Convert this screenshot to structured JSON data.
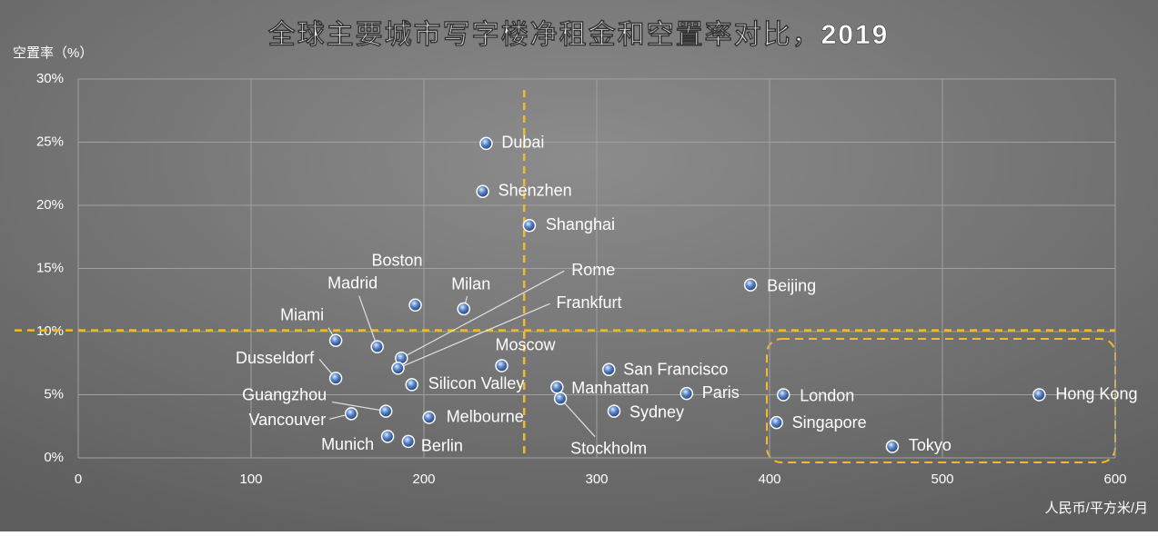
{
  "chart_data": {
    "type": "scatter",
    "title": "全球主要城市写字楼净租金和空置率对比，2019",
    "y_label": "空置率（%）",
    "x_label": "人民币/平方米/月",
    "labels": [
      "Dubai",
      "Shenzhen",
      "Shanghai",
      "Beijing",
      "Boston",
      "Milan",
      "Miami",
      "Madrid",
      "Rome",
      "Frankfurt",
      "Moscow",
      "San Francisco",
      "Dusseldorf",
      "Silicon Valley",
      "Manhattan",
      "Stockholm",
      "Paris",
      "London",
      "Hong Kong",
      "Guangzhou",
      "Sydney",
      "Vancouver",
      "Melbourne",
      "Singapore",
      "Munich",
      "Berlin",
      "Tokyo"
    ],
    "x": [
      236,
      234,
      261,
      389,
      195,
      223,
      149,
      173,
      187,
      185,
      245,
      307,
      149,
      193,
      277,
      279,
      352,
      408,
      556,
      178,
      310,
      158,
      203,
      404,
      179,
      191,
      471
    ],
    "values": [
      24.9,
      21.1,
      18.4,
      13.7,
      12.1,
      11.8,
      9.3,
      8.8,
      7.9,
      7.1,
      7.3,
      7.0,
      6.3,
      5.8,
      5.6,
      4.7,
      5.1,
      5.0,
      5.0,
      3.7,
      3.7,
      3.5,
      3.2,
      2.8,
      1.7,
      1.3,
      0.9
    ],
    "color": "#2f5fa8",
    "xlim": [
      0,
      600
    ],
    "xticks": [
      0,
      100,
      200,
      300,
      400,
      500,
      600
    ],
    "ylim": [
      0,
      30
    ],
    "yticks": [
      {
        "value": 0,
        "label": "0%"
      },
      {
        "value": 5,
        "label": "5%"
      },
      {
        "value": 10,
        "label": "10%"
      },
      {
        "value": 15,
        "label": "15%"
      },
      {
        "value": 20,
        "label": "20%"
      },
      {
        "value": 25,
        "label": "25%"
      },
      {
        "value": 30,
        "label": "30%"
      }
    ],
    "grid": true,
    "reference_lines": {
      "x": 258,
      "y": 10.1,
      "color": "#f5b82e"
    }
  }
}
